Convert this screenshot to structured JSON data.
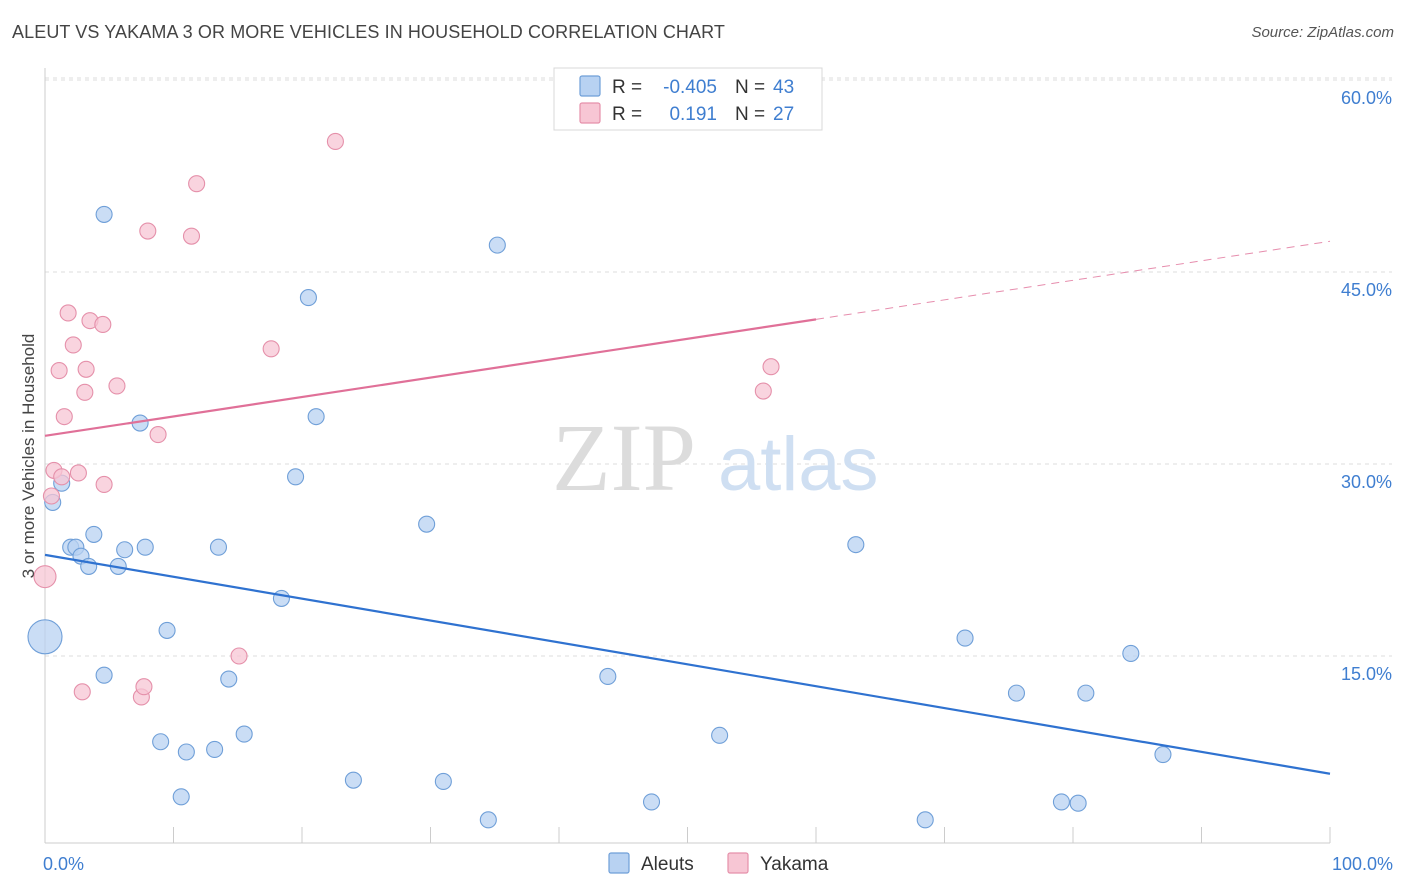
{
  "title": "ALEUT VS YAKAMA 3 OR MORE VEHICLES IN HOUSEHOLD CORRELATION CHART",
  "source": "Source: ZipAtlas.com",
  "watermark": {
    "zip": "ZIP",
    "atlas": "atlas"
  },
  "legend": {
    "rows": [
      {
        "r_label": "R =",
        "r_value": "-0.405",
        "n_label": "N =",
        "n_value": "43"
      },
      {
        "r_label": "R =",
        "r_value": "0.191",
        "n_label": "N =",
        "n_value": "27"
      }
    ]
  },
  "bottom_legend": [
    "Aleuts",
    "Yakama"
  ],
  "colors": {
    "aleuts_fill": "#b8d2f2",
    "aleuts_stroke": "#6f9fd8",
    "aleuts_line": "#2f72d0",
    "yakama_fill": "#f7c6d4",
    "yakama_stroke": "#e590aa",
    "yakama_line": "#e07098",
    "tick_label": "#3f7ed0",
    "grid": "#dddddd"
  },
  "chart_data": {
    "type": "scatter",
    "title": "ALEUT VS YAKAMA 3 OR MORE VEHICLES IN HOUSEHOLD CORRELATION CHART",
    "xlabel": "",
    "ylabel": "3 or more Vehicles in Household",
    "xlim": [
      0,
      100
    ],
    "ylim": [
      0,
      63
    ],
    "x_tick_labels": [
      "0.0%",
      "100.0%"
    ],
    "y_ticks": [
      15,
      30,
      45,
      60
    ],
    "y_tick_labels": [
      "15.0%",
      "30.0%",
      "45.0%",
      "60.0%"
    ],
    "grid": true,
    "legend_position": "top-center",
    "series": [
      {
        "name": "Aleuts",
        "R": -0.405,
        "N": 43,
        "points": [
          [
            0,
            16.5,
            17
          ],
          [
            0.6,
            27,
            8
          ],
          [
            1.3,
            28.5,
            8
          ],
          [
            2.0,
            23.5,
            8
          ],
          [
            2.4,
            23.5,
            8
          ],
          [
            2.8,
            22.8,
            8
          ],
          [
            3.4,
            22.0,
            8
          ],
          [
            3.8,
            24.5,
            8
          ],
          [
            4.6,
            49.5,
            8
          ],
          [
            4.6,
            13.5,
            8
          ],
          [
            5.7,
            22.0,
            8
          ],
          [
            6.2,
            23.3,
            8
          ],
          [
            7.4,
            33.2,
            8
          ],
          [
            7.8,
            23.5,
            8
          ],
          [
            9.0,
            8.3,
            8
          ],
          [
            9.5,
            17.0,
            8
          ],
          [
            10.6,
            4.0,
            8
          ],
          [
            11.0,
            7.5,
            8
          ],
          [
            13.2,
            7.7,
            8
          ],
          [
            13.5,
            23.5,
            8
          ],
          [
            14.3,
            13.2,
            8
          ],
          [
            15.5,
            8.9,
            8
          ],
          [
            18.4,
            19.5,
            8
          ],
          [
            19.5,
            29.0,
            8
          ],
          [
            20.5,
            43.0,
            8
          ],
          [
            21.1,
            33.7,
            8
          ],
          [
            24.0,
            5.3,
            8
          ],
          [
            29.7,
            25.3,
            8
          ],
          [
            31.0,
            5.2,
            8
          ],
          [
            34.5,
            2.2,
            8
          ],
          [
            35.2,
            47.1,
            8
          ],
          [
            43.8,
            13.4,
            8
          ],
          [
            47.2,
            3.6,
            8
          ],
          [
            52.5,
            8.8,
            8
          ],
          [
            63.1,
            23.7,
            8
          ],
          [
            68.5,
            2.2,
            8
          ],
          [
            71.6,
            16.4,
            8
          ],
          [
            75.6,
            12.1,
            8
          ],
          [
            79.1,
            3.6,
            8
          ],
          [
            80.4,
            3.5,
            8
          ],
          [
            81.0,
            12.1,
            8
          ],
          [
            84.5,
            15.2,
            8
          ],
          [
            87.0,
            7.3,
            8
          ]
        ],
        "trend": {
          "x": [
            0,
            100
          ],
          "y": [
            22.9,
            5.8
          ]
        }
      },
      {
        "name": "Yakama",
        "R": 0.191,
        "N": 27,
        "points": [
          [
            0,
            21.2,
            11
          ],
          [
            0.5,
            27.5,
            8
          ],
          [
            0.7,
            29.5,
            8
          ],
          [
            1.1,
            37.3,
            8
          ],
          [
            1.3,
            29.0,
            8
          ],
          [
            1.5,
            33.7,
            8
          ],
          [
            1.8,
            41.8,
            8
          ],
          [
            2.2,
            39.3,
            8
          ],
          [
            2.6,
            29.3,
            8
          ],
          [
            2.9,
            12.2,
            8
          ],
          [
            3.1,
            35.6,
            8
          ],
          [
            3.2,
            37.4,
            8
          ],
          [
            3.5,
            41.2,
            8
          ],
          [
            4.5,
            40.9,
            8
          ],
          [
            4.6,
            28.4,
            8
          ],
          [
            5.6,
            36.1,
            8
          ],
          [
            7.5,
            11.8,
            8
          ],
          [
            7.7,
            12.6,
            8
          ],
          [
            8.0,
            48.2,
            8
          ],
          [
            8.8,
            32.3,
            8
          ],
          [
            11.4,
            47.8,
            8
          ],
          [
            11.8,
            51.9,
            8
          ],
          [
            15.1,
            15.0,
            8
          ],
          [
            17.6,
            39.0,
            8
          ],
          [
            22.6,
            55.2,
            8
          ],
          [
            55.9,
            35.7,
            8
          ],
          [
            56.5,
            37.6,
            8
          ]
        ],
        "trend": {
          "x": [
            0,
            60
          ],
          "y": [
            32.2,
            41.3
          ]
        },
        "trend_dashed": {
          "x": [
            60,
            100
          ],
          "y": [
            41.3,
            47.4
          ]
        }
      }
    ]
  }
}
